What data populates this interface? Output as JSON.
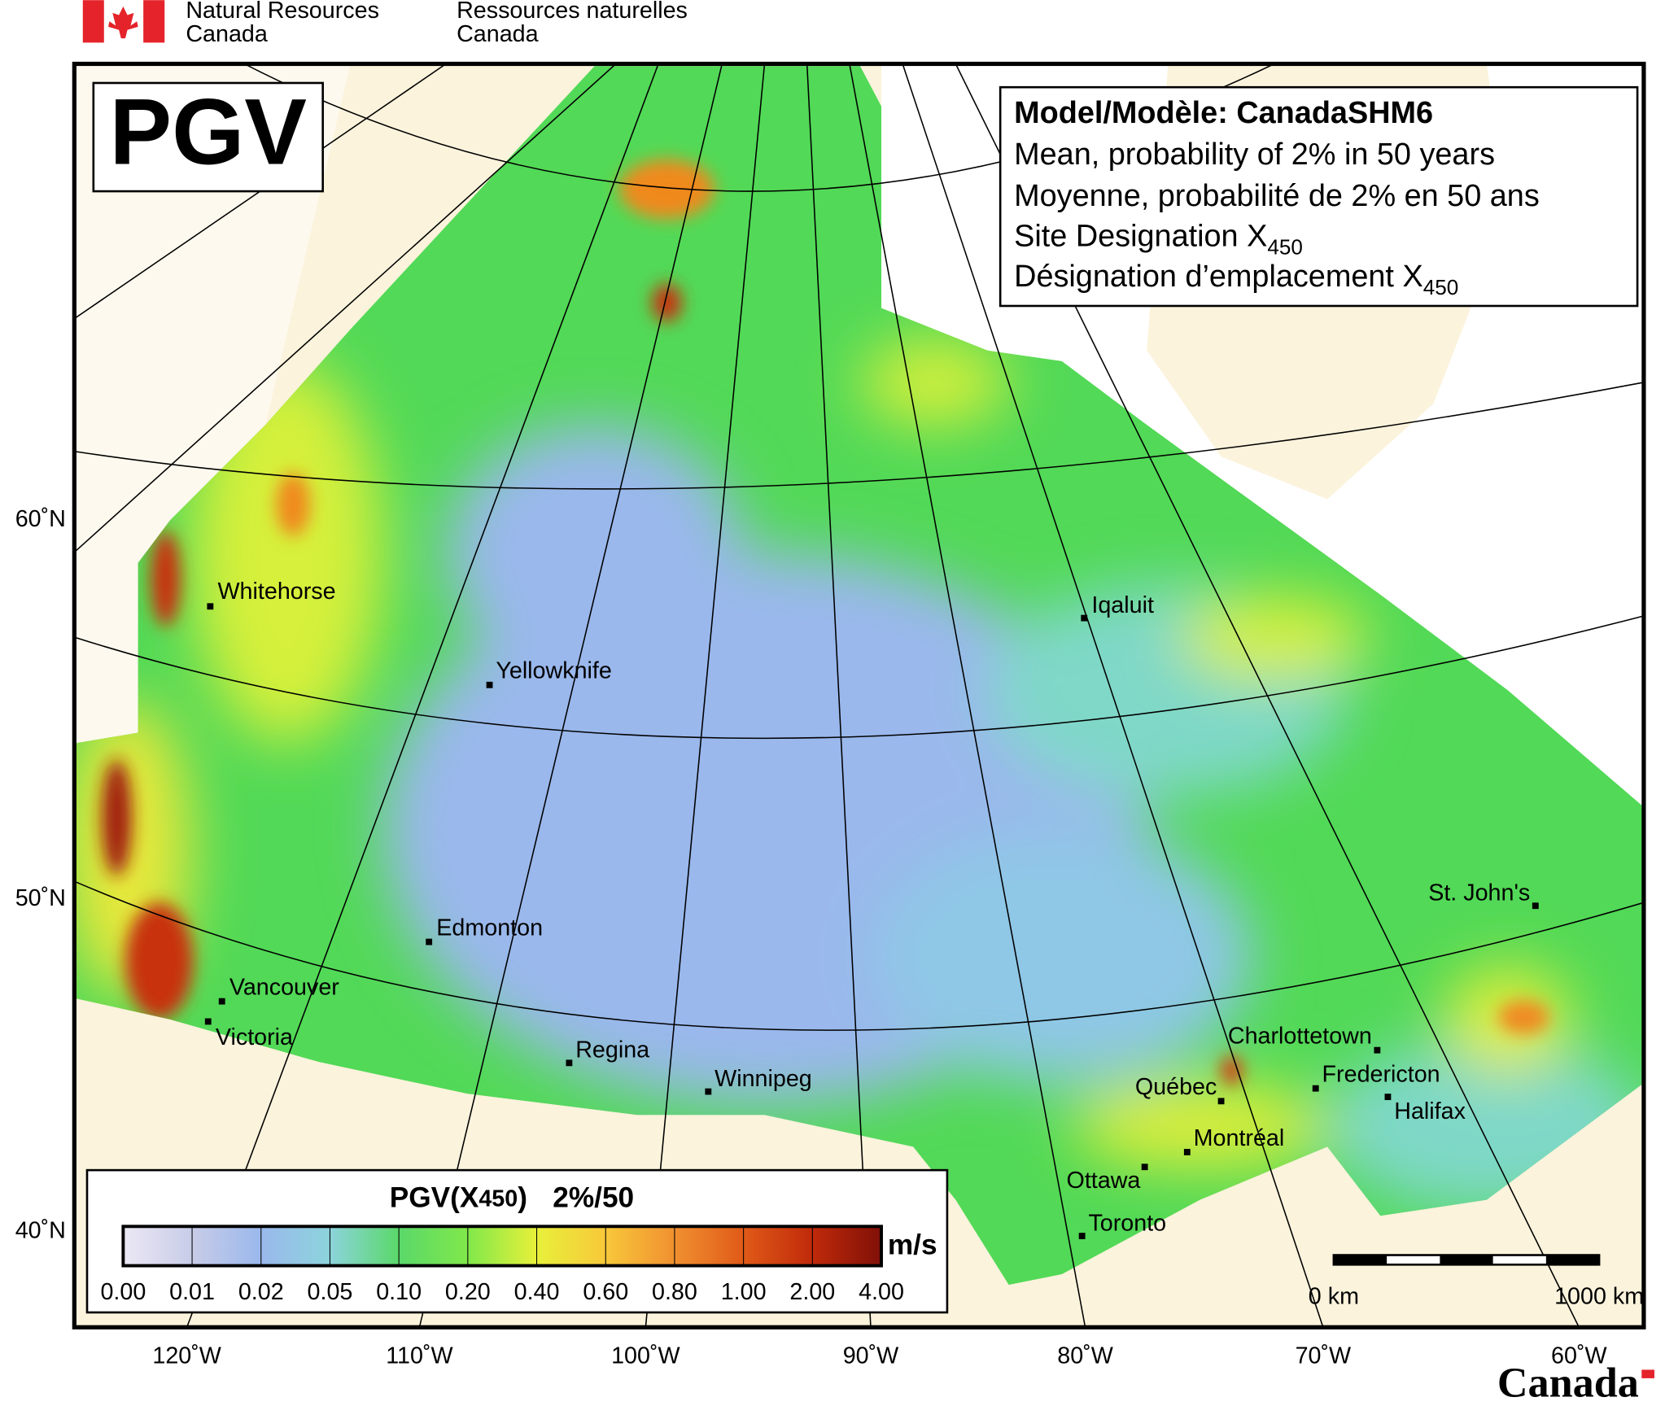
{
  "header": {
    "english": [
      "Natural Resources",
      "Canada"
    ],
    "french": [
      "Ressources naturelles",
      "Canada"
    ]
  },
  "badge": "PGV",
  "model": {
    "title": "Model/Modèle: CanadaSHM6",
    "lines": [
      "Mean, probability of 2% in 50 years",
      "Moyenne, probabilité de 2% en 50 ans"
    ],
    "site_en": {
      "text": "Site Designation X",
      "sub": "450"
    },
    "site_fr": {
      "text": "Désignation d’emplacement X",
      "sub": "450"
    }
  },
  "cities": [
    "Whitehorse",
    "Yellowknife",
    "Edmonton",
    "Vancouver",
    "Victoria",
    "Regina",
    "Winnipeg",
    "Iqaluit",
    "St. John's",
    "Charlottetown",
    "Fredericton",
    "Halifax",
    "Québec",
    "Montréal",
    "Ottawa",
    "Toronto"
  ],
  "latitude_labels": [
    "60˚N",
    "50˚N",
    "40˚N"
  ],
  "longitude_labels": [
    "120˚W",
    "110˚W",
    "100˚W",
    "90˚W",
    "80˚W",
    "70˚W",
    "60˚W"
  ],
  "legend": {
    "title_prefix": "PGV(X",
    "title_sub": "450",
    "title_suffix": ")",
    "probability": "2%/50",
    "unit": "m/s",
    "ticks": [
      "0.00",
      "0.01",
      "0.02",
      "0.05",
      "0.10",
      "0.20",
      "0.40",
      "0.60",
      "0.80",
      "1.00",
      "2.00",
      "4.00"
    ]
  },
  "scale_bar": [
    "0 km",
    "1000 km"
  ],
  "wordmark": "Canada"
}
